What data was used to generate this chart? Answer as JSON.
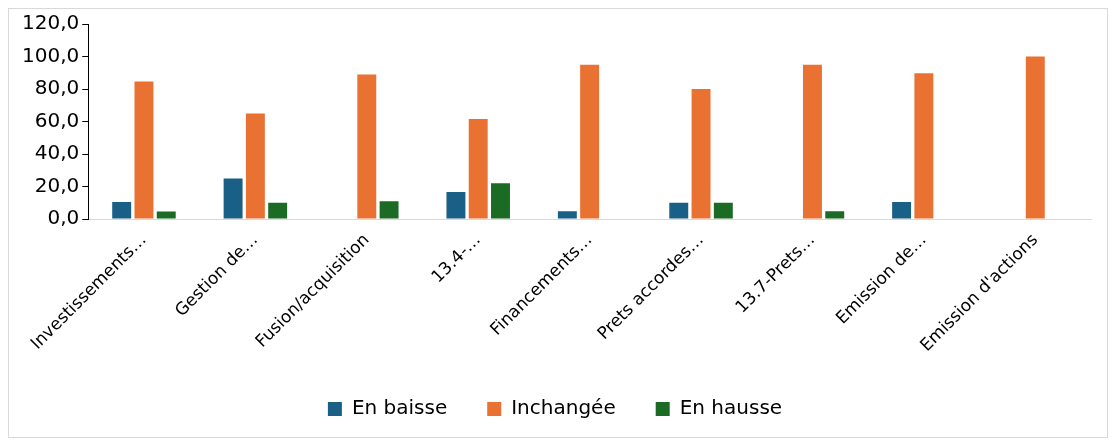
{
  "chart_data": {
    "type": "bar",
    "categories": [
      "Investissements…",
      "Gestion de…",
      "Fusion/acquisition",
      "13.4-…",
      "Financements…",
      "Prets accordes…",
      "13.7-Prets…",
      "Emission de…",
      "Emission d'actions"
    ],
    "series": [
      {
        "name": "En baisse",
        "color": "#1a5f86",
        "values": [
          10.5,
          25,
          0,
          16.7,
          4.8,
          10,
          0,
          10.5,
          0
        ]
      },
      {
        "name": "Inchangée",
        "color": "#e97132",
        "values": [
          84.6,
          65,
          89,
          61.5,
          94.9,
          80,
          94.9,
          89.7,
          100
        ]
      },
      {
        "name": "En hausse",
        "color": "#1b6b25",
        "values": [
          4.6,
          10,
          11,
          22,
          0,
          10,
          4.8,
          0,
          0
        ]
      }
    ],
    "ylim": [
      0,
      120
    ],
    "yticks": [
      {
        "value": 0,
        "label": "0,0"
      },
      {
        "value": 20,
        "label": "20,0"
      },
      {
        "value": 40,
        "label": "40,0"
      },
      {
        "value": 60,
        "label": "60,0"
      },
      {
        "value": 80,
        "label": "80,0"
      },
      {
        "value": 100,
        "label": "100,0"
      },
      {
        "value": 120,
        "label": "120,0"
      }
    ],
    "grid": false,
    "legend": "bottom"
  }
}
